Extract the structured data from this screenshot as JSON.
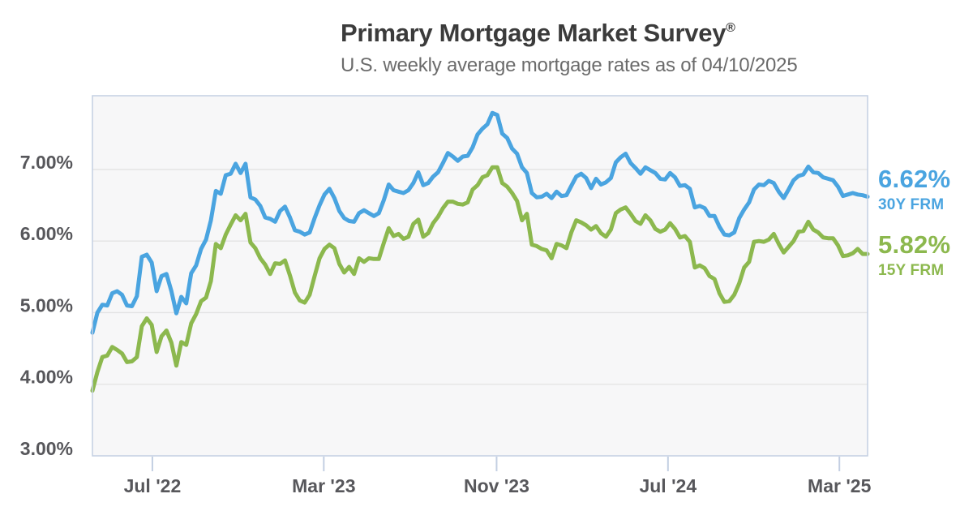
{
  "header": {
    "title": "Primary Mortgage Market Survey",
    "title_mark": "®",
    "subtitle": "U.S. weekly average mortgage rates as of 04/10/2025"
  },
  "callouts": {
    "frm30": {
      "rate": "6.62%",
      "label": "30Y FRM",
      "color": "#4aa4e0"
    },
    "frm15": {
      "rate": "5.82%",
      "label": "15Y FRM",
      "color": "#8cb84e"
    }
  },
  "chart_data": {
    "type": "line",
    "title": "Primary Mortgage Market Survey®",
    "subtitle": "U.S. weekly average mortgage rates as of 04/10/2025",
    "xlabel": "",
    "ylabel": "",
    "x_start_date": "2022-04-07",
    "x_end_date": "2025-04-10",
    "x_interval": "weekly",
    "x_domain_days": 1099,
    "ylim": [
      3,
      8.03
    ],
    "grid": true,
    "legend_position": "right-end-labels",
    "background_color": "#f7f7f8",
    "border_color": "#c3cfe2",
    "gridline_color": "#e3e3e3",
    "yticks": [
      {
        "value": 7,
        "label": "7.00%"
      },
      {
        "value": 6,
        "label": "6.00%"
      },
      {
        "value": 5,
        "label": "5.00%"
      },
      {
        "value": 4,
        "label": "4.00%"
      },
      {
        "value": 3,
        "label": "3.00%"
      }
    ],
    "xticks": [
      {
        "day": 85,
        "label": "Jul '22"
      },
      {
        "day": 328,
        "label": "Mar '23"
      },
      {
        "day": 573,
        "label": "Nov '23"
      },
      {
        "day": 816,
        "label": "Jul '24"
      },
      {
        "day": 1059,
        "label": "Mar '25"
      }
    ],
    "series": [
      {
        "name": "30Y FRM",
        "color": "#4aa4e0",
        "final_value": 6.62,
        "values": [
          4.72,
          5.0,
          5.11,
          5.1,
          5.27,
          5.3,
          5.25,
          5.1,
          5.09,
          5.23,
          5.78,
          5.81,
          5.7,
          5.3,
          5.51,
          5.54,
          5.3,
          4.99,
          5.22,
          5.13,
          5.55,
          5.66,
          5.89,
          6.02,
          6.29,
          6.7,
          6.66,
          6.92,
          6.94,
          7.08,
          6.95,
          7.08,
          6.61,
          6.58,
          6.49,
          6.33,
          6.31,
          6.27,
          6.42,
          6.48,
          6.33,
          6.15,
          6.13,
          6.09,
          6.12,
          6.32,
          6.5,
          6.65,
          6.73,
          6.6,
          6.42,
          6.32,
          6.28,
          6.27,
          6.39,
          6.43,
          6.39,
          6.35,
          6.39,
          6.57,
          6.79,
          6.71,
          6.69,
          6.67,
          6.71,
          6.81,
          6.96,
          6.78,
          6.81,
          6.9,
          6.96,
          7.09,
          7.23,
          7.18,
          7.12,
          7.18,
          7.19,
          7.31,
          7.49,
          7.57,
          7.63,
          7.79,
          7.76,
          7.5,
          7.44,
          7.29,
          7.22,
          7.03,
          6.95,
          6.67,
          6.61,
          6.62,
          6.66,
          6.6,
          6.69,
          6.63,
          6.64,
          6.77,
          6.9,
          6.94,
          6.88,
          6.74,
          6.87,
          6.79,
          6.82,
          6.88,
          7.1,
          7.17,
          7.22,
          7.09,
          7.02,
          6.94,
          7.03,
          6.99,
          6.95,
          6.87,
          6.86,
          6.95,
          6.89,
          6.77,
          6.78,
          6.73,
          6.47,
          6.49,
          6.46,
          6.35,
          6.35,
          6.2,
          6.09,
          6.08,
          6.12,
          6.32,
          6.44,
          6.54,
          6.72,
          6.79,
          6.78,
          6.84,
          6.81,
          6.69,
          6.6,
          6.72,
          6.85,
          6.91,
          6.93,
          7.04,
          6.96,
          6.95,
          6.89,
          6.87,
          6.85,
          6.76,
          6.63,
          6.65,
          6.67,
          6.65,
          6.64,
          6.62
        ]
      },
      {
        "name": "15Y FRM",
        "color": "#8cb84e",
        "final_value": 5.82,
        "values": [
          3.91,
          4.17,
          4.38,
          4.4,
          4.52,
          4.48,
          4.43,
          4.31,
          4.32,
          4.38,
          4.81,
          4.92,
          4.83,
          4.45,
          4.67,
          4.75,
          4.58,
          4.26,
          4.59,
          4.55,
          4.85,
          4.98,
          5.16,
          5.21,
          5.44,
          5.96,
          5.9,
          6.09,
          6.23,
          6.36,
          6.29,
          6.38,
          5.98,
          5.9,
          5.76,
          5.67,
          5.54,
          5.69,
          5.68,
          5.73,
          5.52,
          5.28,
          5.17,
          5.14,
          5.25,
          5.51,
          5.76,
          5.89,
          5.95,
          5.9,
          5.68,
          5.56,
          5.64,
          5.54,
          5.76,
          5.71,
          5.76,
          5.75,
          5.75,
          5.97,
          6.18,
          6.07,
          6.1,
          6.03,
          6.06,
          6.24,
          6.3,
          6.06,
          6.11,
          6.25,
          6.34,
          6.46,
          6.55,
          6.55,
          6.52,
          6.51,
          6.54,
          6.72,
          6.78,
          6.89,
          6.92,
          7.03,
          7.03,
          6.81,
          6.76,
          6.67,
          6.56,
          6.29,
          6.38,
          5.95,
          5.93,
          5.89,
          5.87,
          5.76,
          5.96,
          5.94,
          5.9,
          6.12,
          6.29,
          6.26,
          6.22,
          6.16,
          6.21,
          6.11,
          6.06,
          6.16,
          6.39,
          6.44,
          6.47,
          6.38,
          6.28,
          6.24,
          6.36,
          6.29,
          6.17,
          6.13,
          6.16,
          6.25,
          6.17,
          6.05,
          6.07,
          5.99,
          5.63,
          5.66,
          5.62,
          5.51,
          5.47,
          5.27,
          5.15,
          5.16,
          5.25,
          5.41,
          5.63,
          5.71,
          5.99,
          6.0,
          5.99,
          6.02,
          6.1,
          5.96,
          5.84,
          5.92,
          6.0,
          6.13,
          6.14,
          6.27,
          6.16,
          6.12,
          6.05,
          6.04,
          6.04,
          5.94,
          5.79,
          5.8,
          5.83,
          5.89,
          5.82,
          5.82
        ]
      }
    ]
  }
}
